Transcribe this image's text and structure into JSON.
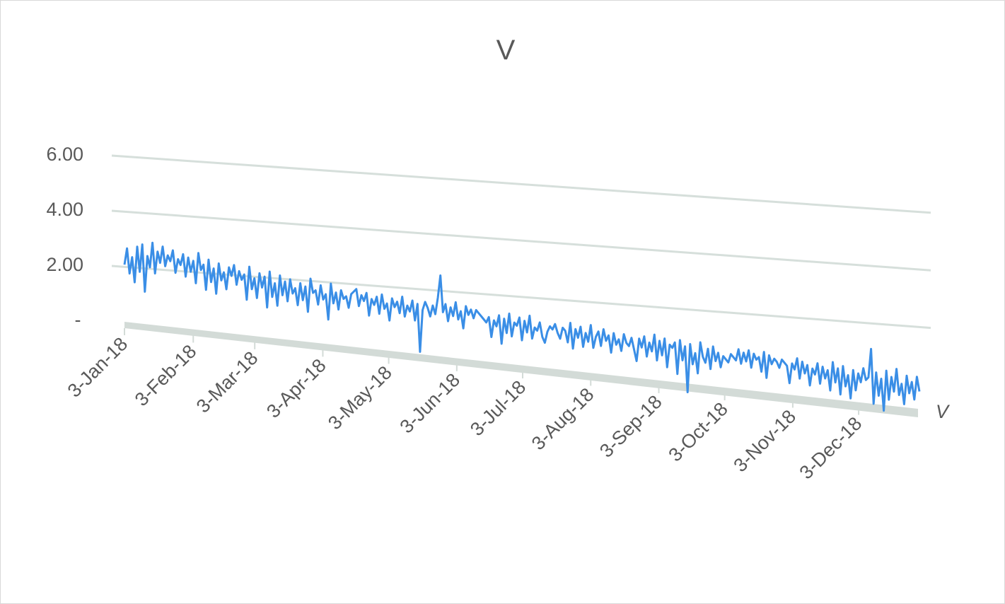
{
  "chart_data": {
    "type": "line",
    "title": "V",
    "depth_axis_label": "V",
    "xlabel": "",
    "ylabel": "",
    "ylim": [
      0,
      6
    ],
    "y_ticks": [
      {
        "value": 0,
        "label": "-"
      },
      {
        "value": 2,
        "label": "2.00"
      },
      {
        "value": 4,
        "label": "4.00"
      },
      {
        "value": 6,
        "label": "6.00"
      }
    ],
    "x_ticks": [
      "3-Jan-18",
      "3-Feb-18",
      "3-Mar-18",
      "3-Apr-18",
      "3-May-18",
      "3-Jun-18",
      "3-Jul-18",
      "3-Aug-18",
      "3-Sep-18",
      "3-Oct-18",
      "3-Nov-18",
      "3-Dec-18"
    ],
    "gridlines": true,
    "legend": "none",
    "colors": {
      "series": "#3a8ee6",
      "grid": "#d6dfdb",
      "floor": "#d3dbd7",
      "text": "#595959"
    },
    "series": [
      {
        "name": "V",
        "x_start": "2018-01-03",
        "x_end": "2018-12-31",
        "values": [
          2.2,
          2.8,
          1.9,
          2.5,
          1.6,
          2.9,
          2.0,
          3.0,
          1.3,
          2.6,
          2.2,
          3.1,
          2.0,
          2.8,
          2.4,
          3.0,
          2.3,
          2.7,
          2.5,
          2.9,
          2.1,
          2.6,
          2.4,
          2.8,
          2.0,
          2.7,
          2.2,
          2.6,
          1.8,
          2.9,
          2.3,
          2.5,
          1.6,
          2.7,
          1.9,
          2.4,
          1.5,
          2.6,
          2.0,
          2.3,
          1.7,
          2.5,
          2.2,
          2.6,
          1.9,
          2.4,
          2.1,
          2.3,
          1.4,
          2.6,
          1.8,
          2.2,
          1.5,
          2.4,
          1.9,
          2.3,
          1.2,
          2.5,
          1.6,
          2.1,
          1.3,
          2.4,
          1.7,
          2.2,
          1.5,
          2.3,
          1.8,
          2.0,
          1.4,
          2.2,
          1.6,
          2.1,
          1.2,
          2.4,
          1.9,
          2.0,
          1.5,
          2.2,
          1.7,
          1.9,
          1.0,
          2.3,
          1.6,
          2.0,
          1.4,
          2.1,
          1.8,
          1.9,
          1.5,
          2.0,
          2.1,
          2.2,
          1.6,
          2.0,
          1.8,
          2.1,
          1.3,
          1.9,
          1.7,
          2.0,
          1.4,
          2.1,
          1.6,
          1.8,
          1.2,
          2.0,
          1.7,
          1.9,
          1.5,
          2.1,
          1.4,
          1.8,
          1.6,
          2.0,
          1.3,
          1.9,
          0.2,
          1.7,
          2.0,
          1.8,
          1.5,
          1.9,
          1.6,
          2.2,
          3.0,
          1.7,
          2.0,
          1.4,
          1.9,
          1.6,
          2.1,
          1.5,
          1.8,
          1.2,
          2.0,
          1.7,
          1.9,
          1.6,
          1.9,
          1.8,
          1.7,
          1.6,
          1.5,
          1.7,
          1.0,
          1.6,
          1.4,
          1.8,
          0.8,
          1.7,
          1.2,
          1.9,
          1.1,
          1.6,
          1.5,
          1.8,
          1.0,
          1.7,
          1.3,
          1.9,
          1.1,
          1.5,
          1.4,
          1.7,
          1.2,
          1.0,
          1.4,
          1.6,
          1.5,
          1.7,
          1.4,
          1.2,
          1.6,
          1.5,
          1.1,
          1.8,
          0.9,
          1.6,
          1.3,
          1.7,
          1.0,
          1.5,
          1.2,
          1.8,
          1.0,
          1.4,
          1.6,
          1.1,
          1.7,
          1.3,
          1.5,
          0.9,
          1.6,
          1.2,
          1.4,
          1.0,
          1.6,
          1.3,
          1.2,
          1.5,
          1.1,
          0.7,
          1.5,
          1.2,
          1.6,
          0.9,
          1.4,
          1.1,
          1.7,
          0.8,
          1.5,
          1.0,
          1.6,
          0.6,
          1.4,
          1.3,
          1.5,
          0.4,
          1.6,
          0.9,
          1.4,
          -0.2,
          1.5,
          0.8,
          1.2,
          0.5,
          1.6,
          1.1,
          0.9,
          1.4,
          0.7,
          1.5,
          1.0,
          1.3,
          0.8,
          1.2,
          1.1,
          1.0,
          1.3,
          1.2,
          1.1,
          1.5,
          1.0,
          1.4,
          1.1,
          1.5,
          0.9,
          1.4,
          1.2,
          1.3,
          0.8,
          1.5,
          0.6,
          1.4,
          1.1,
          1.3,
          1.2,
          1.0,
          1.3,
          1.2,
          1.1,
          0.5,
          1.2,
          1.0,
          1.4,
          0.7,
          1.3,
          0.9,
          1.2,
          0.5,
          1.1,
          0.9,
          1.3,
          0.6,
          1.2,
          0.8,
          1.1,
          0.4,
          1.4,
          0.7,
          1.2,
          0.3,
          1.3,
          0.6,
          1.0,
          0.2,
          1.2,
          0.5,
          1.1,
          0.8,
          1.3,
          0.9,
          1.0,
          2.0,
          0.1,
          1.2,
          0.4,
          1.0,
          -0.1,
          1.3,
          0.3,
          1.1,
          0.6,
          1.4,
          0.5,
          0.9,
          0.2,
          1.2,
          0.6,
          1.0,
          0.4,
          1.2,
          0.7
        ]
      }
    ]
  }
}
